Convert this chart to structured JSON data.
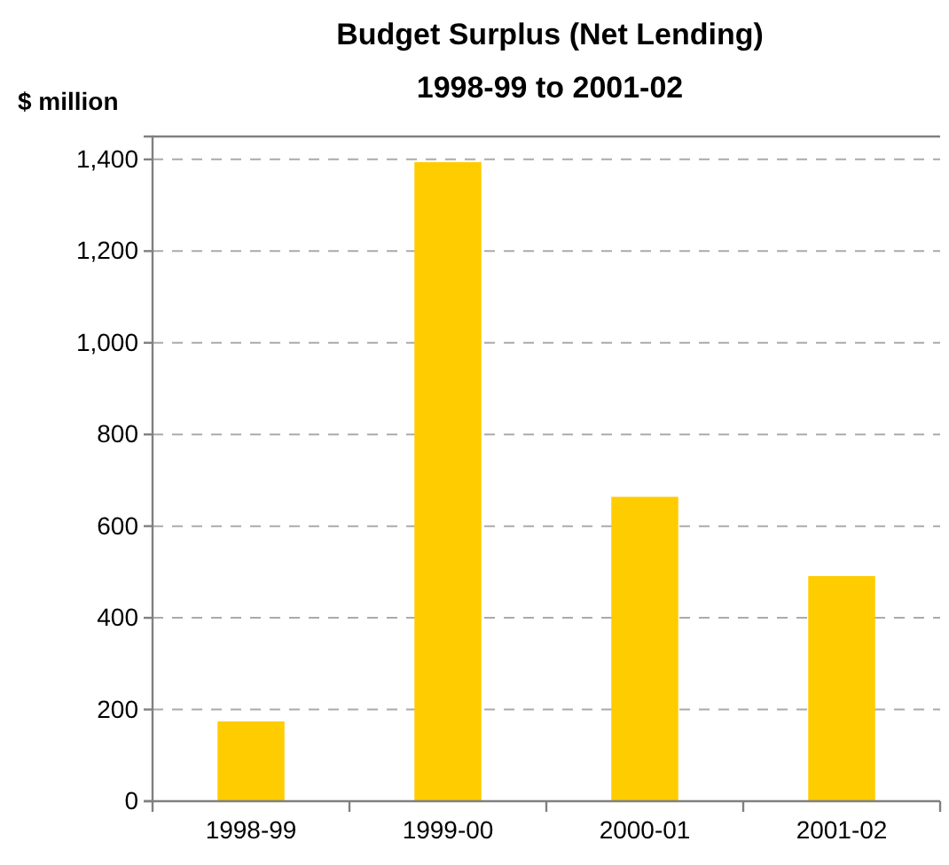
{
  "chart_data": {
    "type": "bar",
    "title": "Budget Surplus (Net Lending)",
    "subtitle": "1998-99 to 2001-02",
    "ylabel": "$ million",
    "categories": [
      "1998-99",
      "1999-00",
      "2000-01",
      "2001-02"
    ],
    "values": [
      174,
      1394,
      664,
      491
    ],
    "color": "#ffcc00",
    "ylim": [
      0,
      1450
    ],
    "yticks": [
      0,
      {
        "value": 200,
        "label": "200"
      },
      {
        "value": 400,
        "label": "400"
      },
      {
        "value": 600,
        "label": "600"
      },
      {
        "value": 800,
        "label": "800"
      },
      {
        "value": 1000,
        "label": "1,000"
      },
      {
        "value": 1200,
        "label": "1,200"
      },
      {
        "value": 1400,
        "label": "1,400"
      }
    ],
    "grid": "y"
  }
}
